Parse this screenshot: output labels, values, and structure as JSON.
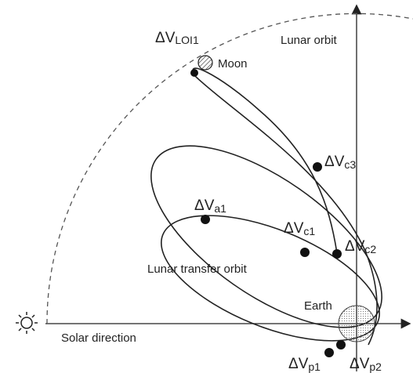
{
  "labels": {
    "moon": "Moon",
    "lunar_orbit": "Lunar orbit",
    "transfer_orbit": "Lunar transfer orbit",
    "earth": "Earth",
    "solar_direction": "Solar direction"
  },
  "maneuvers": [
    {
      "symbol": "ΔV",
      "subscript": "LOI1"
    },
    {
      "symbol": "ΔV",
      "subscript": "c3"
    },
    {
      "symbol": "ΔV",
      "subscript": "a1"
    },
    {
      "symbol": "ΔV",
      "subscript": "c1"
    },
    {
      "symbol": "ΔV",
      "subscript": "c2"
    },
    {
      "symbol": "ΔV",
      "subscript": "p1"
    },
    {
      "symbol": "ΔV",
      "subscript": "p2"
    }
  ]
}
